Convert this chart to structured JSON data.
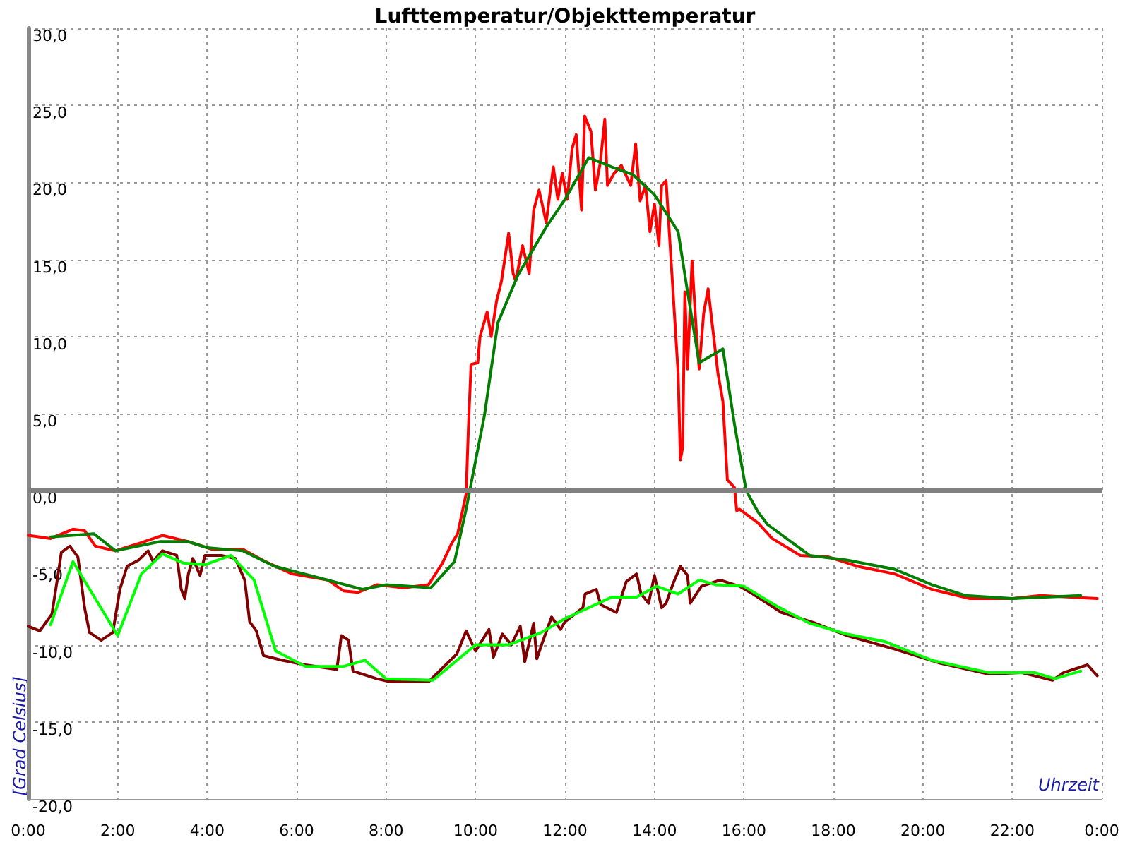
{
  "chart_data": {
    "type": "line",
    "title": "Lufttemperatur/Objekttemperatur",
    "xlabel": "Uhrzeit",
    "ylabel": "[Grad Celsius]",
    "xlim": [
      0,
      24
    ],
    "xticks": [
      {
        "value": 0,
        "label": "0:00"
      },
      {
        "value": 2,
        "label": "2:00"
      },
      {
        "value": 4,
        "label": "4:00"
      },
      {
        "value": 6,
        "label": "6:00"
      },
      {
        "value": 8,
        "label": "8:00"
      },
      {
        "value": 10,
        "label": "10:00"
      },
      {
        "value": 12,
        "label": "12:00"
      },
      {
        "value": 14,
        "label": "14:00"
      },
      {
        "value": 16,
        "label": "16:00"
      },
      {
        "value": 18,
        "label": "18:00"
      },
      {
        "value": 20,
        "label": "20:00"
      },
      {
        "value": 22,
        "label": "22:00"
      },
      {
        "value": 24,
        "label": "0:00"
      }
    ],
    "ylim": [
      -20,
      30
    ],
    "yticks": [
      {
        "value": -20,
        "label": "-20,0"
      },
      {
        "value": -15,
        "label": "-15,0"
      },
      {
        "value": -10,
        "label": "-10,0"
      },
      {
        "value": -5,
        "label": "-5,0"
      },
      {
        "value": 0,
        "label": "0,0"
      },
      {
        "value": 5,
        "label": "5,0"
      },
      {
        "value": 10,
        "label": "10,0"
      },
      {
        "value": 15,
        "label": "15,0"
      },
      {
        "value": 20,
        "label": "20,0"
      },
      {
        "value": 25,
        "label": "25,0"
      },
      {
        "value": 30,
        "label": "30,0"
      }
    ],
    "grid": true,
    "marker": "none",
    "line_style": "solid",
    "ref_lines": [
      {
        "axis": "y",
        "value": 0,
        "color": "#808080"
      }
    ],
    "series": [
      {
        "color": "#ff0000",
        "x": [
          0,
          0.5,
          1.0,
          1.26,
          1.5,
          1.95,
          2.5,
          3.0,
          3.57,
          4.1,
          4.8,
          5.3,
          5.9,
          6.7,
          7.05,
          7.37,
          7.8,
          8.4,
          8.95,
          9.26,
          9.47,
          9.6,
          9.79,
          9.84,
          9.9,
          10.05,
          10.1,
          10.26,
          10.35,
          10.47,
          10.58,
          10.74,
          10.84,
          10.9,
          11.05,
          11.2,
          11.3,
          11.42,
          11.58,
          11.74,
          11.84,
          11.94,
          12.05,
          12.16,
          12.25,
          12.37,
          12.44,
          12.58,
          12.68,
          12.79,
          12.89,
          12.95,
          13.1,
          13.26,
          13.47,
          13.58,
          13.68,
          13.8,
          13.9,
          14.0,
          14.1,
          14.16,
          14.26,
          14.42,
          14.53,
          14.58,
          14.63,
          14.68,
          14.74,
          14.84,
          14.95,
          15.0,
          15.1,
          15.2,
          15.3,
          15.42,
          15.53,
          15.63,
          15.79,
          15.84,
          15.9,
          16.32,
          16.63,
          17.26,
          17.89,
          18.53,
          19.37,
          20.2,
          21.05,
          22.0,
          22.63,
          23.9
        ],
        "values": [
          -2.9,
          -3.1,
          -2.5,
          -2.6,
          -3.6,
          -3.9,
          -3.4,
          -2.9,
          -3.3,
          -3.8,
          -3.8,
          -4.6,
          -5.4,
          -5.8,
          -6.5,
          -6.6,
          -6.1,
          -6.3,
          -6.1,
          -4.7,
          -3.4,
          -2.8,
          -0.2,
          4.0,
          8.2,
          8.3,
          10.0,
          11.6,
          10.0,
          12.3,
          13.6,
          16.7,
          14.1,
          13.6,
          15.9,
          14.1,
          18.2,
          19.5,
          17.4,
          21.0,
          18.9,
          20.6,
          18.9,
          22.2,
          23.1,
          18.2,
          24.3,
          23.3,
          19.5,
          21.3,
          24.1,
          19.8,
          20.6,
          21.1,
          19.8,
          22.5,
          18.8,
          19.8,
          16.8,
          18.6,
          15.9,
          19.8,
          20.1,
          12.7,
          7.6,
          2.0,
          2.8,
          12.9,
          7.9,
          14.9,
          9.7,
          7.9,
          11.5,
          13.1,
          10.6,
          7.6,
          5.8,
          0.7,
          0.2,
          -1.3,
          -1.2,
          -2.1,
          -3.1,
          -4.2,
          -4.3,
          -4.9,
          -5.4,
          -6.4,
          -7.0,
          -7.0,
          -6.8,
          -7.0
        ]
      },
      {
        "color": "#007f00",
        "x": [
          0.5,
          1.47,
          1.95,
          2.95,
          3.57,
          4.0,
          4.8,
          5.5,
          6.7,
          7.47,
          8.0,
          9.0,
          9.53,
          9.79,
          10.2,
          10.5,
          10.95,
          11.58,
          12.0,
          12.53,
          13.05,
          13.52,
          14.0,
          14.53,
          14.74,
          15.0,
          15.53,
          15.79,
          16.05,
          16.32,
          16.53,
          17.47,
          18.3,
          19.37,
          20.2,
          20.95,
          22.0,
          23.53
        ],
        "values": [
          -3.0,
          -2.8,
          -3.9,
          -3.3,
          -3.3,
          -3.7,
          -3.9,
          -4.9,
          -5.8,
          -6.4,
          -6.1,
          -6.3,
          -4.6,
          -1.2,
          4.9,
          10.9,
          14.0,
          17.1,
          18.9,
          21.6,
          21.0,
          20.5,
          19.2,
          16.8,
          12.9,
          8.3,
          9.2,
          4.3,
          0.0,
          -1.4,
          -2.2,
          -4.2,
          -4.5,
          -5.1,
          -6.1,
          -6.8,
          -7.0,
          -6.8
        ]
      },
      {
        "color": "#800000",
        "x": [
          0,
          0.26,
          0.53,
          0.68,
          0.74,
          0.93,
          1.11,
          1.26,
          1.37,
          1.63,
          1.89,
          2.05,
          2.21,
          2.47,
          2.68,
          2.79,
          3.0,
          3.32,
          3.42,
          3.5,
          3.58,
          3.68,
          3.84,
          3.95,
          4.32,
          4.63,
          4.84,
          4.95,
          5.1,
          5.26,
          5.68,
          6.2,
          6.9,
          7.0,
          7.16,
          7.26,
          7.79,
          8.1,
          8.95,
          9.26,
          9.58,
          9.79,
          10.0,
          10.3,
          10.4,
          10.6,
          10.8,
          11.0,
          11.1,
          11.3,
          11.37,
          11.5,
          11.7,
          11.9,
          12.0,
          12.4,
          12.45,
          12.7,
          12.8,
          13.15,
          13.37,
          13.6,
          13.7,
          13.87,
          14.0,
          14.16,
          14.26,
          14.42,
          14.58,
          14.74,
          14.8,
          15.05,
          15.47,
          15.9,
          16.2,
          16.84,
          17.6,
          18.3,
          19.4,
          20.4,
          21.47,
          22.2,
          22.9,
          23.15,
          23.68,
          23.9
        ],
        "values": [
          -8.8,
          -9.1,
          -8.0,
          -5.2,
          -4.0,
          -3.6,
          -4.3,
          -7.6,
          -9.2,
          -9.7,
          -9.2,
          -6.4,
          -4.9,
          -4.5,
          -3.9,
          -4.6,
          -3.9,
          -4.2,
          -6.4,
          -7.0,
          -5.4,
          -4.4,
          -5.5,
          -4.2,
          -4.2,
          -4.4,
          -5.8,
          -8.5,
          -9.1,
          -10.7,
          -11.0,
          -11.3,
          -11.6,
          -9.4,
          -9.7,
          -11.7,
          -12.2,
          -12.4,
          -12.4,
          -11.5,
          -10.6,
          -9.1,
          -10.4,
          -9.0,
          -10.8,
          -9.3,
          -10.0,
          -8.8,
          -11.1,
          -8.6,
          -10.9,
          -9.8,
          -8.2,
          -9.0,
          -8.5,
          -7.6,
          -6.7,
          -6.4,
          -7.4,
          -7.9,
          -5.9,
          -5.4,
          -6.7,
          -7.3,
          -5.5,
          -7.6,
          -7.3,
          -6.0,
          -4.9,
          -5.5,
          -7.3,
          -6.2,
          -5.8,
          -6.2,
          -6.7,
          -7.9,
          -8.6,
          -9.4,
          -10.3,
          -11.2,
          -11.9,
          -11.8,
          -12.3,
          -11.8,
          -11.3,
          -12.0
        ]
      },
      {
        "color": "#00ff00",
        "x": [
          0.5,
          1.0,
          2.0,
          2.53,
          3.0,
          3.47,
          3.95,
          4.53,
          5.05,
          5.53,
          6.2,
          7.05,
          7.53,
          8.0,
          9.05,
          10.0,
          10.74,
          11.47,
          12.0,
          13.05,
          13.6,
          14.05,
          14.53,
          15.0,
          15.37,
          16.0,
          16.74,
          17.47,
          18.3,
          19.16,
          20.2,
          21.47,
          22.5,
          22.95,
          23.53
        ],
        "values": [
          -8.7,
          -4.6,
          -9.4,
          -5.4,
          -4.1,
          -4.7,
          -4.8,
          -4.2,
          -5.8,
          -10.4,
          -11.4,
          -11.4,
          -11.0,
          -12.2,
          -12.3,
          -10.0,
          -10.0,
          -9.2,
          -8.3,
          -6.9,
          -6.9,
          -6.2,
          -6.7,
          -5.8,
          -6.1,
          -6.2,
          -7.5,
          -8.6,
          -9.3,
          -9.8,
          -11.0,
          -11.8,
          -11.8,
          -12.2,
          -11.7
        ]
      }
    ]
  }
}
